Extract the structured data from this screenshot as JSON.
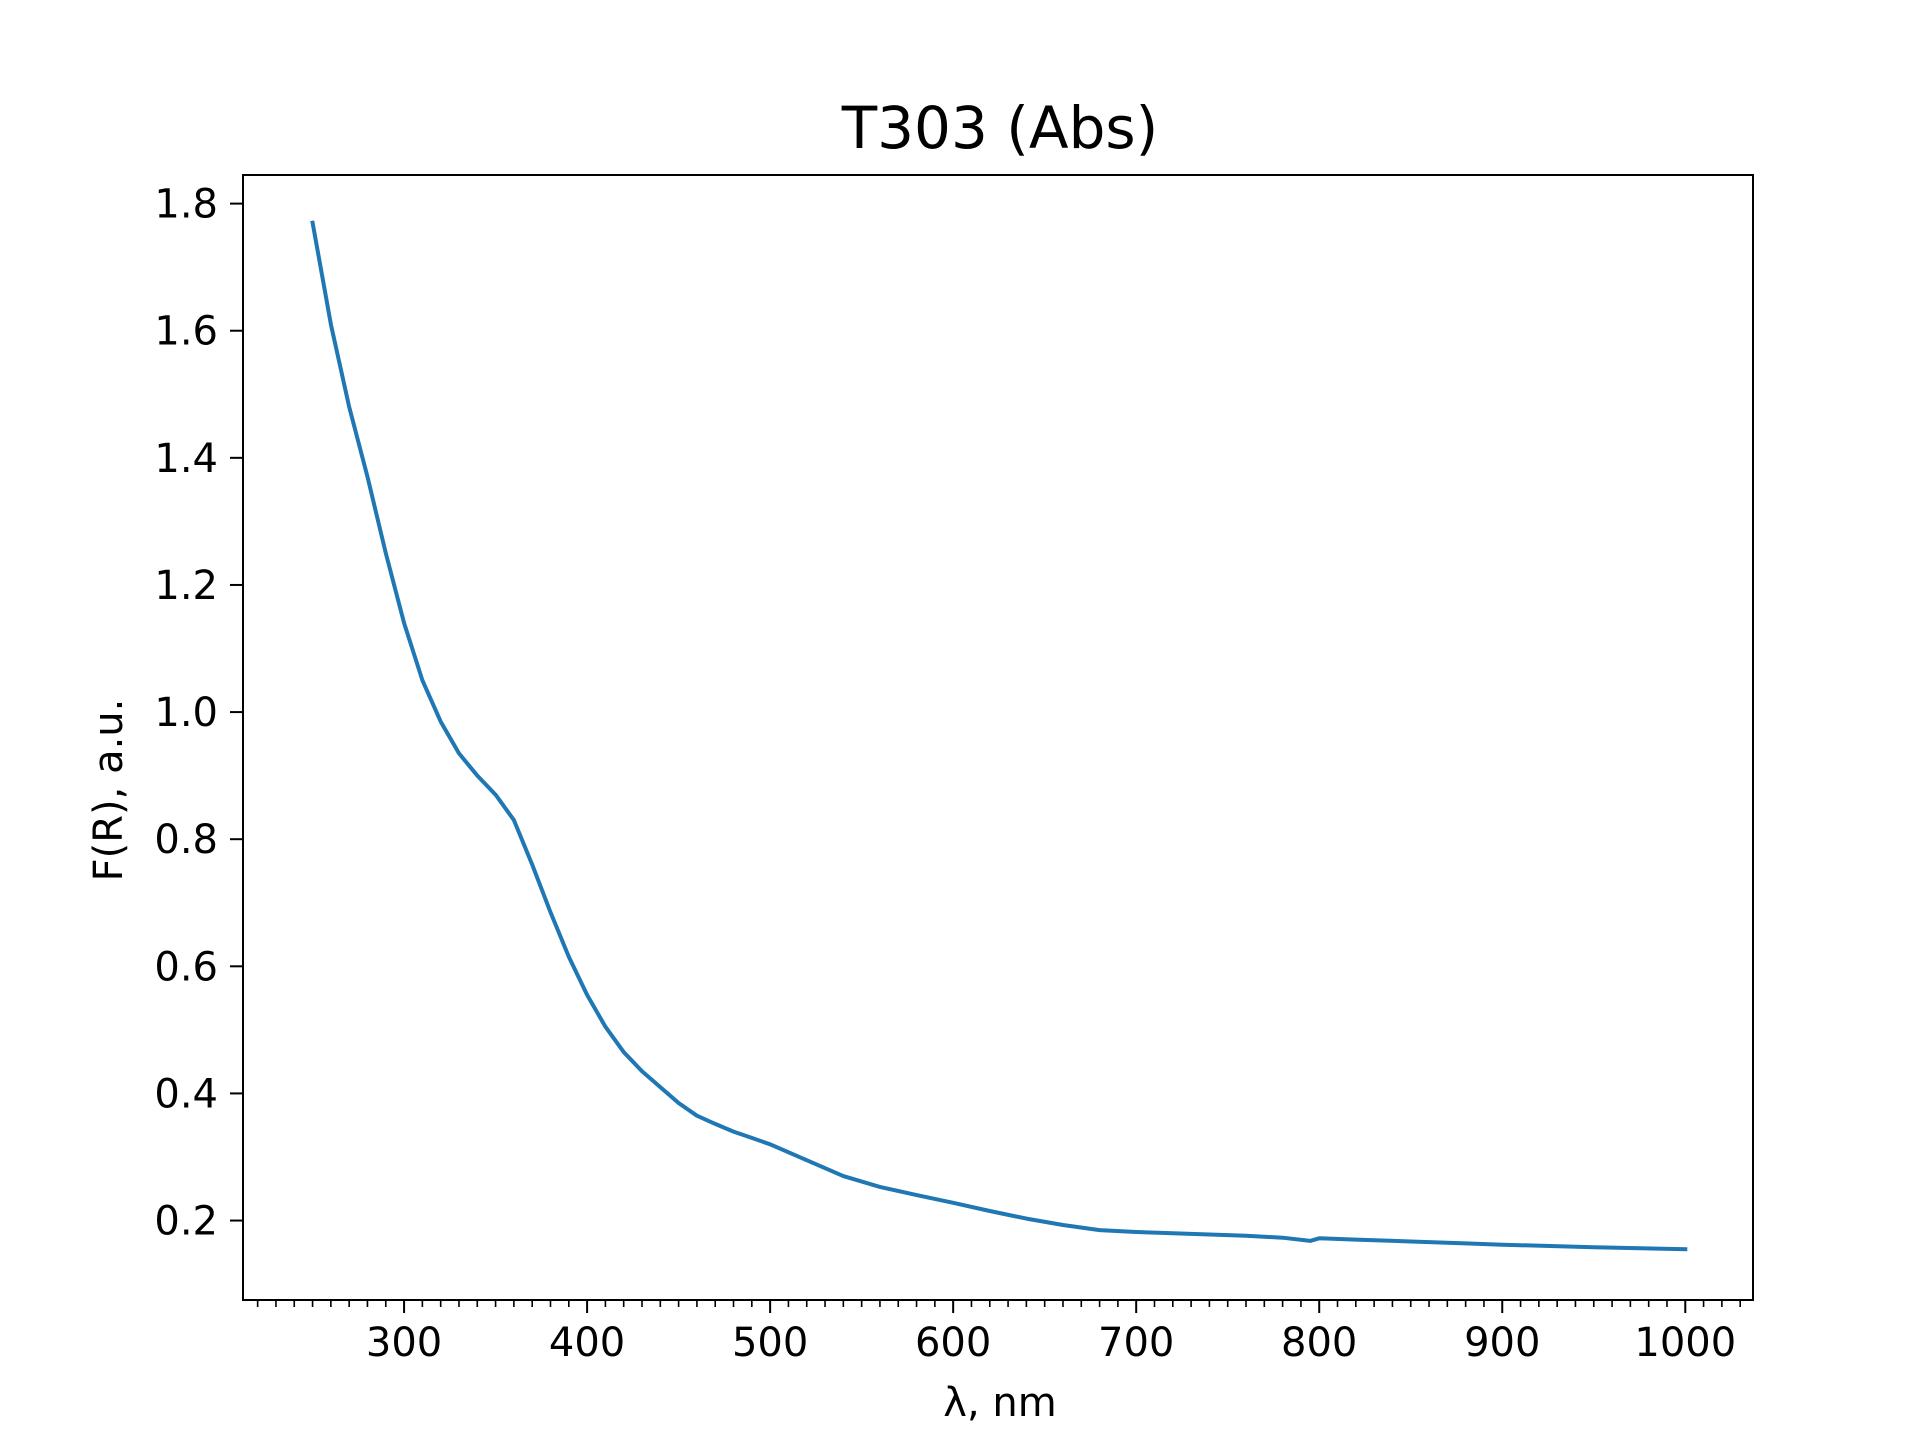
{
  "chart_data": {
    "type": "line",
    "title": "T303 (Abs)",
    "xlabel": "λ, nm",
    "ylabel": "F(R), a.u.",
    "xlim": [
      212,
      1037
    ],
    "ylim": [
      0.075,
      1.845
    ],
    "xticks": [
      300,
      400,
      500,
      600,
      700,
      800,
      900,
      1000
    ],
    "yticks": [
      0.2,
      0.4,
      0.6,
      0.8,
      1.0,
      1.2,
      1.4,
      1.6,
      1.8
    ],
    "xtick_labels": [
      "300",
      "400",
      "500",
      "600",
      "700",
      "800",
      "900",
      "1000"
    ],
    "ytick_labels": [
      "0.2",
      "0.4",
      "0.6",
      "0.8",
      "1.0",
      "1.2",
      "1.4",
      "1.6",
      "1.8"
    ],
    "x_minor_step": 10,
    "grid": false,
    "legend": "none",
    "series": [
      {
        "color": "#1f77b4",
        "x": [
          250,
          260,
          270,
          280,
          290,
          300,
          310,
          320,
          330,
          340,
          350,
          360,
          370,
          380,
          390,
          400,
          410,
          420,
          430,
          440,
          450,
          460,
          470,
          480,
          490,
          500,
          520,
          540,
          560,
          580,
          600,
          620,
          640,
          660,
          680,
          700,
          720,
          740,
          760,
          780,
          795,
          800,
          820,
          850,
          880,
          900,
          950,
          1000
        ],
        "y": [
          1.77,
          1.61,
          1.48,
          1.37,
          1.25,
          1.14,
          1.05,
          0.985,
          0.935,
          0.9,
          0.87,
          0.83,
          0.76,
          0.685,
          0.615,
          0.555,
          0.505,
          0.465,
          0.435,
          0.41,
          0.385,
          0.365,
          0.352,
          0.34,
          0.33,
          0.32,
          0.295,
          0.27,
          0.253,
          0.24,
          0.228,
          0.215,
          0.203,
          0.193,
          0.185,
          0.182,
          0.18,
          0.178,
          0.176,
          0.173,
          0.168,
          0.172,
          0.17,
          0.167,
          0.164,
          0.162,
          0.158,
          0.155
        ]
      }
    ]
  }
}
